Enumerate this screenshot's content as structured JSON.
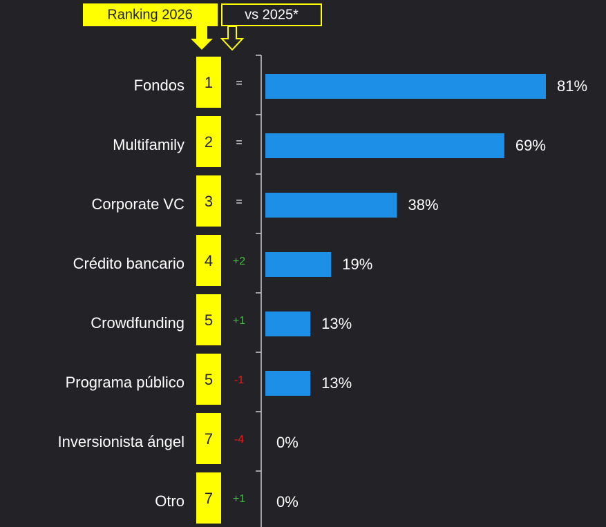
{
  "chart_data": {
    "type": "bar",
    "orientation": "horizontal",
    "header_rank": "Ranking 2026",
    "header_change": "vs 2025*",
    "categories": [
      "Fondos",
      "Multifamily",
      "Corporate VC",
      "Crédito bancario",
      "Crowdfunding",
      "Programa público",
      "Inversionista ángel",
      "Otro"
    ],
    "values": [
      81,
      69,
      38,
      19,
      13,
      13,
      0,
      0
    ],
    "value_labels": [
      "81%",
      "69%",
      "38%",
      "19%",
      "13%",
      "13%",
      "0%",
      "0%"
    ],
    "ranks": [
      1,
      2,
      3,
      4,
      5,
      5,
      7,
      7
    ],
    "changes": [
      "=",
      "=",
      "=",
      "+2",
      "+1",
      "-1",
      "-4",
      "+1"
    ],
    "color": "#1e8fe6",
    "rank_color": "#ffff00",
    "change_colors": {
      "up": "#3cc13c",
      "down": "#e81c1c",
      "same": "#ffffff"
    }
  }
}
